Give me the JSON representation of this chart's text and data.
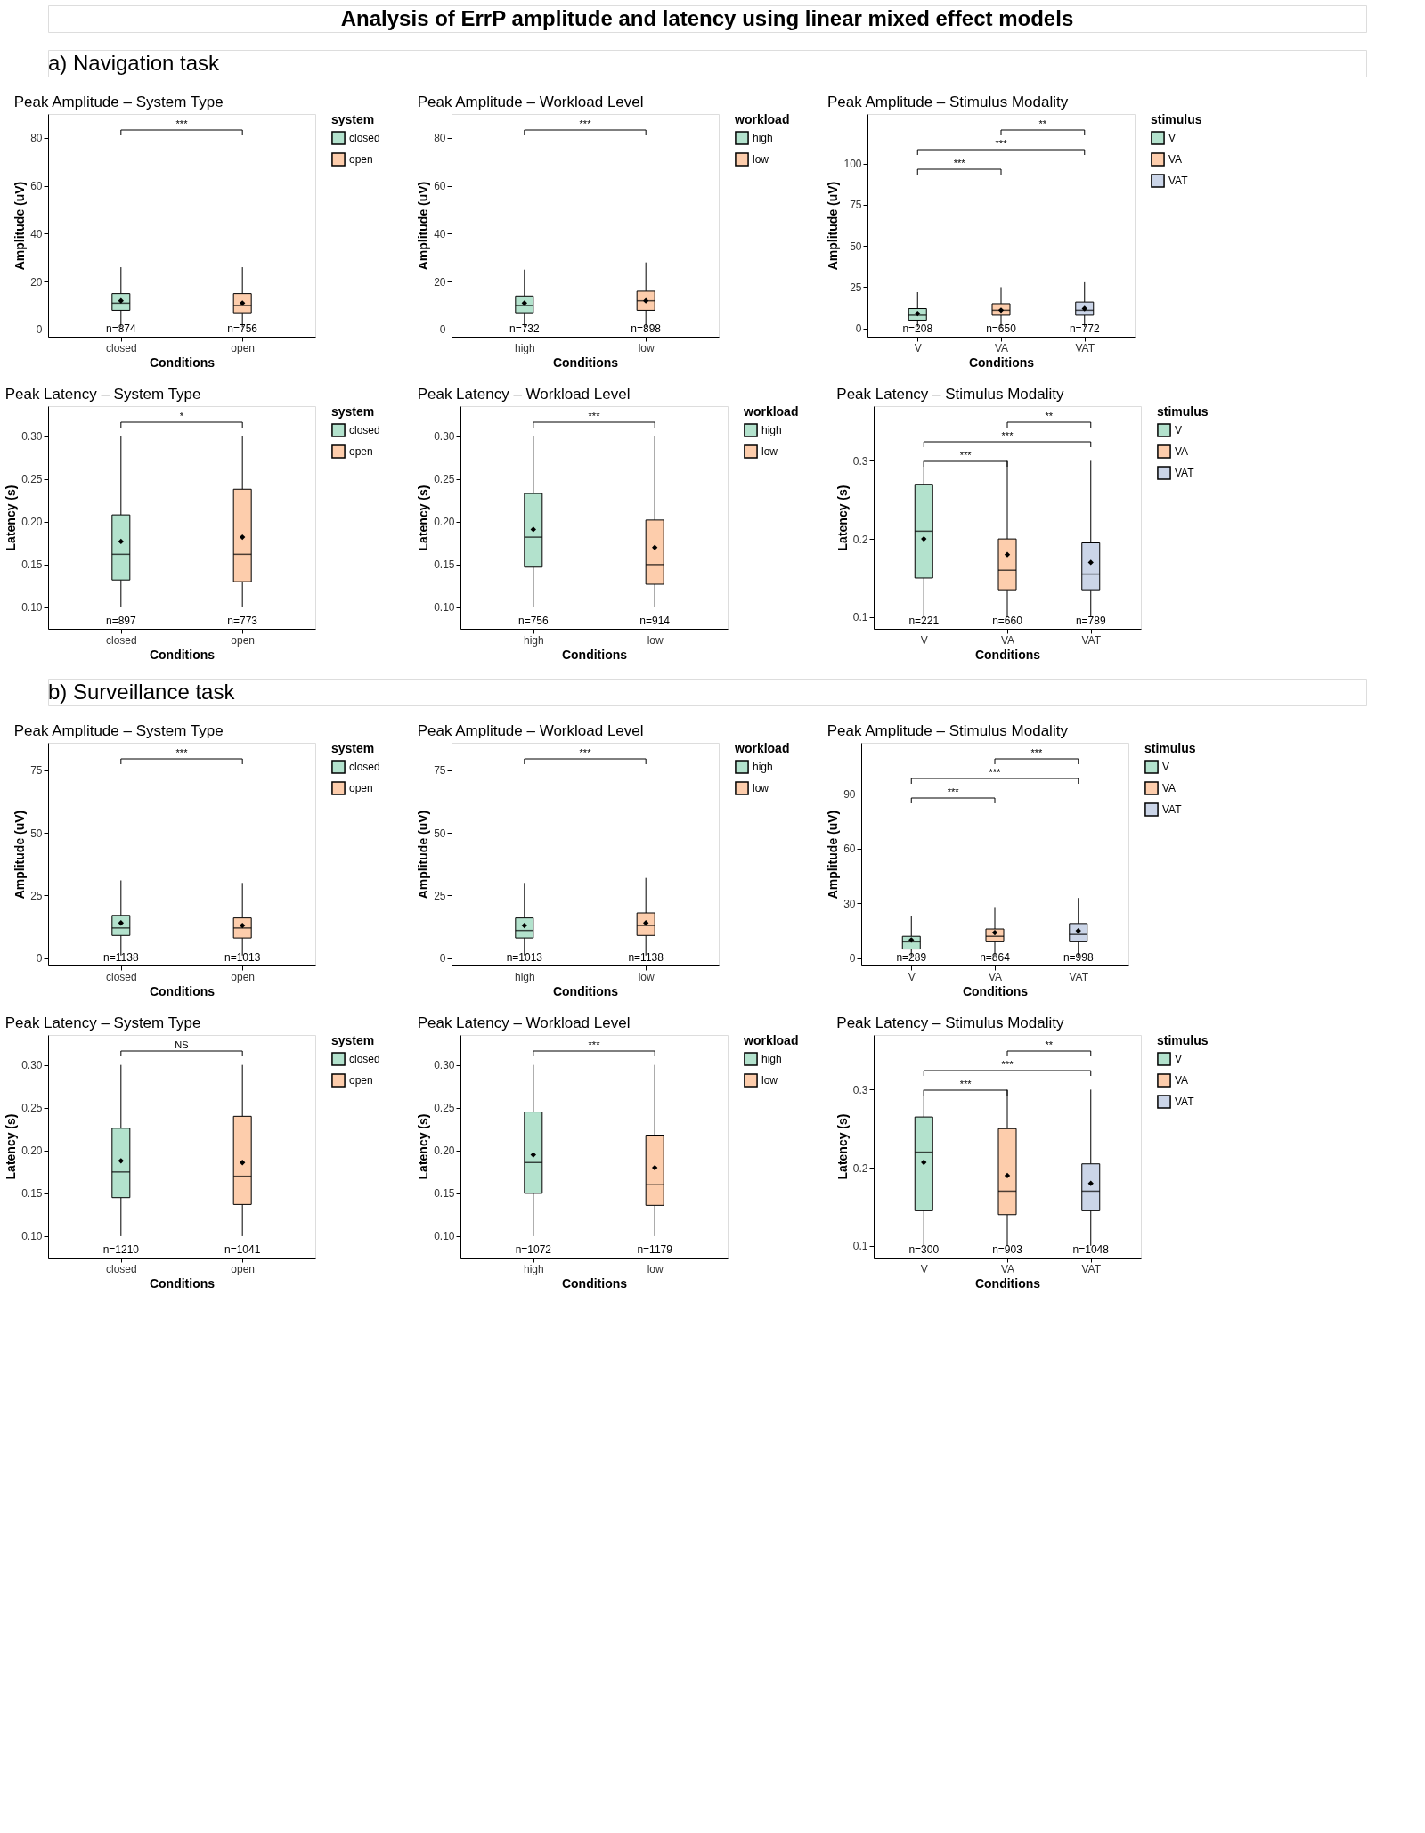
{
  "chart_data": [
    {
      "type": "box",
      "subtitle": "a) Navigation task",
      "title": "Peak Amplitude – System Type",
      "xlabel": "Conditions",
      "ylabel": "Amplitude (uV)",
      "legend_title": "system",
      "legend": "right",
      "categories": [
        "closed",
        "open"
      ],
      "ylim": [
        -3,
        90
      ],
      "yticks": [
        0,
        20,
        40,
        60,
        80
      ],
      "series": [
        {
          "name": "closed",
          "color": "#b3e2cd",
          "boxes": [
            {
              "low": 1,
              "q1": 8,
              "median": 11,
              "q3": 15,
              "high": 26,
              "mean": 12
            },
            null
          ]
        },
        {
          "name": "open",
          "color": "#fdcdac",
          "boxes": [
            null,
            {
              "low": 1,
              "q1": 7,
              "median": 10,
              "q3": 15,
              "high": 26,
              "mean": 11
            }
          ]
        }
      ],
      "annotations": [
        "***",
        "n=874",
        "n=756",
        "Analysis of ErrP amplitude and latency using linear mixed effect models"
      ]
    },
    {
      "type": "box",
      "title": "Peak Amplitude – Workload Level",
      "xlabel": "Conditions",
      "ylabel": "Amplitude (uV)",
      "legend_title": "workload",
      "legend": "right",
      "categories": [
        "high",
        "low"
      ],
      "ylim": [
        -3,
        90
      ],
      "yticks": [
        0,
        20,
        40,
        60,
        80
      ],
      "series": [
        {
          "name": "high",
          "color": "#b3e2cd",
          "boxes": [
            {
              "low": 1,
              "q1": 7,
              "median": 10,
              "q3": 14,
              "high": 25,
              "mean": 11
            },
            null
          ]
        },
        {
          "name": "low",
          "color": "#fdcdac",
          "boxes": [
            null,
            {
              "low": 1,
              "q1": 8,
              "median": 12,
              "q3": 16,
              "high": 28,
              "mean": 12
            }
          ]
        }
      ],
      "annotations": [
        "***",
        "n=732",
        "n=898"
      ]
    },
    {
      "type": "box",
      "title": "Peak Amplitude – Stimulus Modality",
      "xlabel": "Conditions",
      "ylabel": "Amplitude (uV)",
      "legend_title": "stimulus",
      "legend": "right",
      "categories": [
        "V",
        "VA",
        "VAT"
      ],
      "ylim": [
        -5,
        130
      ],
      "yticks": [
        0,
        25,
        50,
        75,
        100
      ],
      "series": [
        {
          "name": "V",
          "color": "#b3e2cd",
          "boxes": [
            {
              "low": 1,
              "q1": 5,
              "median": 8,
              "q3": 12,
              "high": 22,
              "mean": 9
            },
            null,
            null
          ]
        },
        {
          "name": "VA",
          "color": "#fdcdac",
          "boxes": [
            null,
            {
              "low": 1,
              "q1": 8,
              "median": 11,
              "q3": 15,
              "high": 25,
              "mean": 11
            },
            null
          ]
        },
        {
          "name": "VAT",
          "color": "#cbd5e8",
          "boxes": [
            null,
            null,
            {
              "low": 1,
              "q1": 8,
              "median": 11,
              "q3": 16,
              "high": 28,
              "mean": 12
            }
          ]
        }
      ],
      "annotations": [
        "***",
        "***",
        "**",
        "n=208",
        "n=650",
        "n=772"
      ]
    },
    {
      "type": "box",
      "title": "Peak Latency – System Type",
      "xlabel": "Conditions",
      "ylabel": "Latency (s)",
      "legend_title": "system",
      "legend": "right",
      "categories": [
        "closed",
        "open"
      ],
      "ylim": [
        0.075,
        0.335
      ],
      "yticks": [
        {
          "value": 0.1,
          "label": "0.10"
        },
        0.15,
        {
          "value": 0.2,
          "label": "0.20"
        },
        0.25,
        {
          "value": 0.3,
          "label": "0.30"
        }
      ],
      "series": [
        {
          "name": "closed",
          "color": "#b3e2cd",
          "boxes": [
            {
              "low": 0.1,
              "q1": 0.132,
              "median": 0.162,
              "q3": 0.208,
              "high": 0.3,
              "mean": 0.177
            },
            null
          ]
        },
        {
          "name": "open",
          "color": "#fdcdac",
          "boxes": [
            null,
            {
              "low": 0.1,
              "q1": 0.13,
              "median": 0.162,
              "q3": 0.238,
              "high": 0.3,
              "mean": 0.182
            }
          ]
        }
      ],
      "annotations": [
        "*",
        "n=897",
        "n=773"
      ]
    },
    {
      "type": "box",
      "title": "Peak Latency – Workload Level",
      "xlabel": "Conditions",
      "ylabel": "Latency (s)",
      "legend_title": "workload",
      "legend": "right",
      "categories": [
        "high",
        "low"
      ],
      "ylim": [
        0.075,
        0.335
      ],
      "yticks": [
        {
          "value": 0.1,
          "label": "0.10"
        },
        0.15,
        {
          "value": 0.2,
          "label": "0.20"
        },
        0.25,
        {
          "value": 0.3,
          "label": "0.30"
        }
      ],
      "series": [
        {
          "name": "high",
          "color": "#b3e2cd",
          "boxes": [
            {
              "low": 0.1,
              "q1": 0.147,
              "median": 0.182,
              "q3": 0.233,
              "high": 0.3,
              "mean": 0.191
            },
            null
          ]
        },
        {
          "name": "low",
          "color": "#fdcdac",
          "boxes": [
            null,
            {
              "low": 0.1,
              "q1": 0.127,
              "median": 0.15,
              "q3": 0.202,
              "high": 0.3,
              "mean": 0.17
            }
          ]
        }
      ],
      "annotations": [
        "***",
        "n=756",
        "n=914"
      ]
    },
    {
      "type": "box",
      "title": "Peak Latency – Stimulus Modality",
      "xlabel": "Conditions",
      "ylabel": "Latency (s)",
      "legend_title": "stimulus",
      "legend": "right",
      "categories": [
        "V",
        "VA",
        "VAT"
      ],
      "ylim": [
        0.085,
        0.37
      ],
      "yticks": [
        0.1,
        0.2,
        0.3
      ],
      "series": [
        {
          "name": "V",
          "color": "#b3e2cd",
          "boxes": [
            {
              "low": 0.1,
              "q1": 0.15,
              "median": 0.21,
              "q3": 0.27,
              "high": 0.3,
              "mean": 0.2
            },
            null,
            null
          ]
        },
        {
          "name": "VA",
          "color": "#fdcdac",
          "boxes": [
            null,
            {
              "low": 0.1,
              "q1": 0.135,
              "median": 0.16,
              "q3": 0.2,
              "high": 0.3,
              "mean": 0.18
            },
            null
          ]
        },
        {
          "name": "VAT",
          "color": "#cbd5e8",
          "boxes": [
            null,
            null,
            {
              "low": 0.1,
              "q1": 0.135,
              "median": 0.155,
              "q3": 0.195,
              "high": 0.3,
              "mean": 0.17
            }
          ]
        }
      ],
      "annotations": [
        "***",
        "***",
        "**",
        "n=221",
        "n=660",
        "n=789"
      ]
    },
    {
      "type": "box",
      "subtitle": "b) Surveillance task",
      "title": "Peak Amplitude – System Type",
      "xlabel": "Conditions",
      "ylabel": "Amplitude (uV)",
      "legend_title": "system",
      "legend": "right",
      "categories": [
        "closed",
        "open"
      ],
      "ylim": [
        -3,
        86
      ],
      "yticks": [
        0,
        25,
        50,
        75
      ],
      "series": [
        {
          "name": "closed",
          "color": "#b3e2cd",
          "boxes": [
            {
              "low": 1,
              "q1": 9,
              "median": 12,
              "q3": 17,
              "high": 31,
              "mean": 14
            },
            null
          ]
        },
        {
          "name": "open",
          "color": "#fdcdac",
          "boxes": [
            null,
            {
              "low": 1,
              "q1": 8,
              "median": 12,
              "q3": 16,
              "high": 30,
              "mean": 13
            }
          ]
        }
      ],
      "annotations": [
        "***",
        "n=1138",
        "n=1013"
      ]
    },
    {
      "type": "box",
      "title": "Peak Amplitude – Workload Level",
      "xlabel": "Conditions",
      "ylabel": "Amplitude (uV)",
      "legend_title": "workload",
      "legend": "right",
      "categories": [
        "high",
        "low"
      ],
      "ylim": [
        -3,
        86
      ],
      "yticks": [
        0,
        25,
        50,
        75
      ],
      "series": [
        {
          "name": "high",
          "color": "#b3e2cd",
          "boxes": [
            {
              "low": 1,
              "q1": 8,
              "median": 11,
              "q3": 16,
              "high": 30,
              "mean": 13
            },
            null
          ]
        },
        {
          "name": "low",
          "color": "#fdcdac",
          "boxes": [
            null,
            {
              "low": 1,
              "q1": 9,
              "median": 13,
              "q3": 18,
              "high": 32,
              "mean": 14
            }
          ]
        }
      ],
      "annotations": [
        "***",
        "n=1013",
        "n=1138"
      ]
    },
    {
      "type": "box",
      "title": "Peak Amplitude – Stimulus Modality",
      "xlabel": "Conditions",
      "ylabel": "Amplitude (uV)",
      "legend_title": "stimulus",
      "legend": "right",
      "categories": [
        "V",
        "VA",
        "VAT"
      ],
      "ylim": [
        -4,
        118
      ],
      "yticks": [
        0,
        30,
        60,
        90
      ],
      "series": [
        {
          "name": "V",
          "color": "#b3e2cd",
          "boxes": [
            {
              "low": 1,
              "q1": 5,
              "median": 9,
              "q3": 12,
              "high": 23,
              "mean": 10
            },
            null,
            null
          ]
        },
        {
          "name": "VA",
          "color": "#fdcdac",
          "boxes": [
            null,
            {
              "low": 1,
              "q1": 9,
              "median": 12,
              "q3": 16,
              "high": 28,
              "mean": 14
            },
            null
          ]
        },
        {
          "name": "VAT",
          "color": "#cbd5e8",
          "boxes": [
            null,
            null,
            {
              "low": 1,
              "q1": 9,
              "median": 13,
              "q3": 19,
              "high": 33,
              "mean": 15
            }
          ]
        }
      ],
      "annotations": [
        "***",
        "***",
        "***",
        "n=289",
        "n=864",
        "n=998"
      ]
    },
    {
      "type": "box",
      "title": "Peak Latency – System Type",
      "xlabel": "Conditions",
      "ylabel": "Latency (s)",
      "legend_title": "system",
      "legend": "right",
      "categories": [
        "closed",
        "open"
      ],
      "ylim": [
        0.075,
        0.335
      ],
      "yticks": [
        {
          "value": 0.1,
          "label": "0.10"
        },
        0.15,
        {
          "value": 0.2,
          "label": "0.20"
        },
        0.25,
        {
          "value": 0.3,
          "label": "0.30"
        }
      ],
      "series": [
        {
          "name": "closed",
          "color": "#b3e2cd",
          "boxes": [
            {
              "low": 0.1,
              "q1": 0.145,
              "median": 0.175,
              "q3": 0.226,
              "high": 0.3,
              "mean": 0.188
            },
            null
          ]
        },
        {
          "name": "open",
          "color": "#fdcdac",
          "boxes": [
            null,
            {
              "low": 0.1,
              "q1": 0.137,
              "median": 0.17,
              "q3": 0.24,
              "high": 0.3,
              "mean": 0.186
            }
          ]
        }
      ],
      "annotations": [
        "NS",
        "n=1210",
        "n=1041"
      ]
    },
    {
      "type": "box",
      "title": "Peak Latency – Workload Level",
      "xlabel": "Conditions",
      "ylabel": "Latency (s)",
      "legend_title": "workload",
      "legend": "right",
      "categories": [
        "high",
        "low"
      ],
      "ylim": [
        0.075,
        0.335
      ],
      "yticks": [
        {
          "value": 0.1,
          "label": "0.10"
        },
        0.15,
        {
          "value": 0.2,
          "label": "0.20"
        },
        0.25,
        {
          "value": 0.3,
          "label": "0.30"
        }
      ],
      "series": [
        {
          "name": "high",
          "color": "#b3e2cd",
          "boxes": [
            {
              "low": 0.1,
              "q1": 0.15,
              "median": 0.186,
              "q3": 0.245,
              "high": 0.3,
              "mean": 0.195
            },
            null
          ]
        },
        {
          "name": "low",
          "color": "#fdcdac",
          "boxes": [
            null,
            {
              "low": 0.1,
              "q1": 0.136,
              "median": 0.16,
              "q3": 0.218,
              "high": 0.3,
              "mean": 0.18
            }
          ]
        }
      ],
      "annotations": [
        "***",
        "n=1072",
        "n=1179"
      ]
    },
    {
      "type": "box",
      "title": "Peak Latency – Stimulus Modality",
      "xlabel": "Conditions",
      "ylabel": "Latency (s)",
      "legend_title": "stimulus",
      "legend": "right",
      "categories": [
        "V",
        "VA",
        "VAT"
      ],
      "ylim": [
        0.085,
        0.37
      ],
      "yticks": [
        0.1,
        0.2,
        0.3
      ],
      "series": [
        {
          "name": "V",
          "color": "#b3e2cd",
          "boxes": [
            {
              "low": 0.1,
              "q1": 0.145,
              "median": 0.22,
              "q3": 0.265,
              "high": 0.3,
              "mean": 0.207
            },
            null,
            null
          ]
        },
        {
          "name": "VA",
          "color": "#fdcdac",
          "boxes": [
            null,
            {
              "low": 0.1,
              "q1": 0.14,
              "median": 0.17,
              "q3": 0.25,
              "high": 0.3,
              "mean": 0.19
            },
            null
          ]
        },
        {
          "name": "VAT",
          "color": "#cbd5e8",
          "boxes": [
            null,
            null,
            {
              "low": 0.1,
              "q1": 0.145,
              "median": 0.17,
              "q3": 0.205,
              "high": 0.3,
              "mean": 0.18
            }
          ]
        }
      ],
      "annotations": [
        "***",
        "***",
        "**",
        "n=300",
        "n=903",
        "n=1048"
      ]
    }
  ]
}
